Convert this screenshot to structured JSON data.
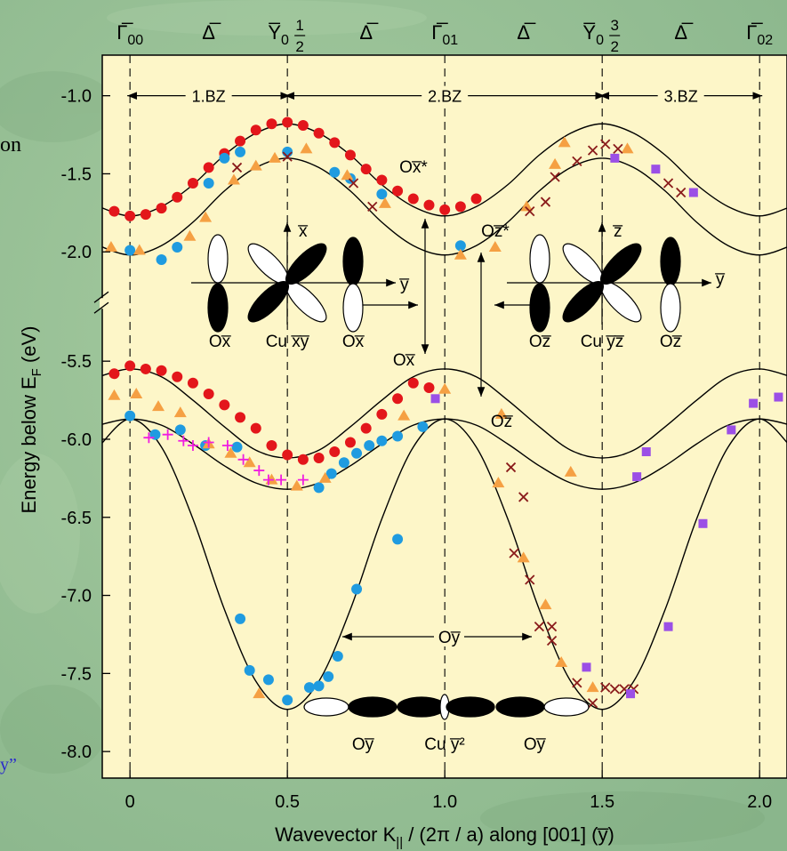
{
  "chart_data": {
    "type": "scatter",
    "xlim": [
      -0.088,
      2.087
    ],
    "ylim": [
      -8.17,
      -0.74
    ],
    "ybreak": [
      -5.13,
      -2.33
    ],
    "xticks": [
      0,
      0.5,
      {
        "value": 1,
        "label": "1.0"
      },
      1.5,
      {
        "value": 2,
        "label": "2.0"
      }
    ],
    "yticks": [
      {
        "value": -1,
        "label": "-1.0"
      },
      -1.5,
      {
        "value": -2,
        "label": "-2.0"
      },
      -5.5,
      {
        "value": -6,
        "label": "-6.0"
      },
      -6.5,
      {
        "value": -7,
        "label": "-7.0"
      },
      -7.5,
      {
        "value": -8,
        "label": "-8.0"
      }
    ],
    "xgrid": true,
    "xaxis_title": {
      "text": "Wavevector K",
      "sub": "||",
      "after": " / (2π / a) along [001] (y̅)"
    },
    "yaxis_title": {
      "text": "Energy below E",
      "sub": "F",
      "after": " (eV)"
    },
    "top_labels": [
      {
        "text": "Γ̅",
        "sub": "00"
      },
      {
        "text": "Δ̅"
      },
      {
        "text": "Y̅",
        "sub": "0",
        "frac": [
          "1",
          "2"
        ]
      },
      {
        "text": "Δ̅"
      },
      {
        "text": "Γ̅",
        "sub": "01"
      },
      {
        "text": "Δ̅"
      },
      {
        "text": "Y̅",
        "sub": "0",
        "frac": [
          "3",
          "2"
        ]
      },
      {
        "text": "Δ̅"
      },
      {
        "text": "Γ̅",
        "sub": "02"
      }
    ],
    "zones": [
      "1.BZ",
      "2.BZ",
      "3.BZ"
    ],
    "curve_color": "#000000",
    "curve_x": [
      -0.1,
      0,
      0.1,
      0.2,
      0.3,
      0.4,
      0.5,
      0.6,
      0.7,
      0.8,
      0.9,
      1.0,
      1.1,
      1.2,
      1.3,
      1.4,
      1.5,
      1.6,
      1.7,
      1.8,
      1.9,
      2.0,
      2.1
    ],
    "curves": [
      {
        "values": [
          -1.71,
          -1.77,
          -1.71,
          -1.57,
          -1.38,
          -1.24,
          -1.18,
          -1.24,
          -1.38,
          -1.57,
          -1.71,
          -1.77,
          -1.71,
          -1.57,
          -1.38,
          -1.24,
          -1.18,
          -1.24,
          -1.38,
          -1.57,
          -1.71,
          -1.77,
          -1.71
        ]
      },
      {
        "values": [
          -1.96,
          -2.02,
          -1.96,
          -1.81,
          -1.61,
          -1.46,
          -1.4,
          -1.46,
          -1.61,
          -1.81,
          -1.96,
          -2.02,
          -1.96,
          -1.81,
          -1.61,
          -1.46,
          -1.4,
          -1.46,
          -1.61,
          -1.81,
          -1.96,
          -2.02,
          -1.96
        ]
      },
      {
        "values": [
          -5.6,
          -5.55,
          -5.6,
          -5.75,
          -5.92,
          -6.07,
          -6.12,
          -6.07,
          -5.92,
          -5.75,
          -5.6,
          -5.55,
          -5.6,
          -5.75,
          -5.92,
          -6.07,
          -6.12,
          -6.07,
          -5.92,
          -5.75,
          -5.6,
          -5.55,
          -5.6
        ]
      },
      {
        "values": [
          -5.91,
          -5.87,
          -5.91,
          -6.03,
          -6.17,
          -6.28,
          -6.32,
          -6.28,
          -6.17,
          -6.03,
          -5.91,
          -5.87,
          -5.91,
          -6.03,
          -6.17,
          -6.28,
          -6.32,
          -6.28,
          -6.17,
          -6.03,
          -5.91,
          -5.87,
          -5.91
        ]
      },
      {
        "values": [
          -6.05,
          -5.87,
          -6.05,
          -6.51,
          -7.09,
          -7.55,
          -7.73,
          -7.55,
          -7.09,
          -6.51,
          -6.05,
          -5.87,
          -6.05,
          -6.51,
          -7.09,
          -7.55,
          -7.73,
          -7.55,
          -7.09,
          -6.51,
          -6.05,
          -5.87,
          -6.05
        ]
      }
    ],
    "series": [
      {
        "marker": "circle",
        "color": "#e3161b",
        "x": [
          -0.05,
          0,
          0.05,
          0.1,
          0.15,
          0.2,
          0.25,
          0.3,
          0.35,
          0.4,
          0.45,
          0.5,
          0.55,
          0.6,
          0.65,
          0.7,
          0.75,
          0.8,
          0.85,
          0.9,
          0.95,
          1.0,
          1.05,
          1.1,
          -0.05,
          0,
          0.05,
          0.1,
          0.15,
          0.2,
          0.25,
          0.3,
          0.35,
          0.4,
          0.45,
          0.5,
          0.55,
          0.6,
          0.65,
          0.7,
          0.75,
          0.8,
          0.85,
          0.9,
          0.95
        ],
        "values": [
          -1.74,
          -1.77,
          -1.76,
          -1.72,
          -1.65,
          -1.56,
          -1.46,
          -1.37,
          -1.29,
          -1.22,
          -1.18,
          -1.17,
          -1.19,
          -1.24,
          -1.3,
          -1.38,
          -1.47,
          -1.54,
          -1.61,
          -1.66,
          -1.7,
          -1.73,
          -1.71,
          -1.66,
          -5.58,
          -5.53,
          -5.55,
          -5.56,
          -5.6,
          -5.64,
          -5.71,
          -5.78,
          -5.86,
          -5.93,
          -6.04,
          -6.1,
          -6.13,
          -6.12,
          -6.08,
          -6.02,
          -5.93,
          -5.84,
          -5.74,
          -5.64,
          -5.67
        ]
      },
      {
        "marker": "circle",
        "color": "#1f9be0",
        "x": [
          0,
          0.1,
          0.15,
          0.25,
          0.3,
          0.35,
          0.5,
          0.65,
          0.7,
          0.8,
          1.05,
          0,
          0.08,
          0.16,
          0.24,
          0.34,
          0.6,
          0.64,
          0.68,
          0.72,
          0.76,
          0.8,
          0.85,
          0.93,
          0.35,
          0.38,
          0.44,
          0.5,
          0.57,
          0.6,
          0.63,
          0.66,
          0.72,
          0.85
        ],
        "values": [
          -1.99,
          -2.05,
          -1.97,
          -1.56,
          -1.4,
          -1.36,
          -1.36,
          -1.49,
          -1.53,
          -1.63,
          -1.96,
          -5.85,
          -5.97,
          -5.94,
          -6.04,
          -6.05,
          -6.31,
          -6.22,
          -6.15,
          -6.09,
          -6.04,
          -6.01,
          -5.98,
          -5.92,
          -7.15,
          -7.48,
          -7.54,
          -7.67,
          -7.59,
          -7.58,
          -7.52,
          -7.39,
          -6.96,
          -6.64
        ]
      },
      {
        "marker": "triangle",
        "color": "#f5a043",
        "x": [
          -0.06,
          0.03,
          0.19,
          0.24,
          0.33,
          0.4,
          0.46,
          0.56,
          0.69,
          0.81,
          1.05,
          1.16,
          1.26,
          1.35,
          1.38,
          1.58,
          -0.05,
          0.02,
          0.09,
          0.16,
          0.25,
          0.32,
          0.38,
          0.45,
          0.53,
          0.62,
          0.87,
          1.0,
          1.18,
          1.17,
          1.4,
          1.25,
          1.32,
          1.37,
          1.47,
          0.41
        ],
        "values": [
          -1.97,
          -1.99,
          -1.9,
          -1.78,
          -1.54,
          -1.45,
          -1.4,
          -1.34,
          -1.51,
          -1.69,
          -2.02,
          -1.97,
          -1.71,
          -1.44,
          -1.3,
          -1.34,
          -5.72,
          -5.71,
          -5.79,
          -5.83,
          -6.03,
          -6.09,
          -6.15,
          -6.26,
          -6.3,
          -6.25,
          -5.85,
          -5.68,
          -5.84,
          -6.28,
          -6.21,
          -6.76,
          -7.06,
          -7.43,
          -7.59,
          -7.63
        ]
      },
      {
        "marker": "cross",
        "color": "#8a1b1b",
        "x": [
          0.34,
          0.5,
          0.71,
          0.77,
          1.27,
          1.32,
          1.35,
          1.42,
          1.47,
          1.51,
          1.55,
          1.71,
          1.75,
          1.21,
          1.25,
          1.22,
          1.27,
          1.3,
          1.34,
          1.34,
          1.42,
          1.47,
          1.51,
          1.54,
          1.57,
          1.6
        ],
        "values": [
          -1.46,
          -1.39,
          -1.56,
          -1.71,
          -1.74,
          -1.68,
          -1.52,
          -1.42,
          -1.35,
          -1.31,
          -1.34,
          -1.56,
          -1.62,
          -6.18,
          -6.37,
          -6.73,
          -6.9,
          -7.2,
          -7.2,
          -7.29,
          -7.56,
          -7.69,
          -7.59,
          -7.6,
          -7.6,
          -7.6
        ]
      },
      {
        "marker": "plus",
        "color": "#f01ee0",
        "x": [
          0.06,
          0.12,
          0.17,
          0.2,
          0.25,
          0.31,
          0.36,
          0.41,
          0.44,
          0.48,
          0.55
        ],
        "values": [
          -5.99,
          -5.97,
          -6.01,
          -6.04,
          -6.02,
          -6.04,
          -6.13,
          -6.2,
          -6.26,
          -6.26,
          -6.26
        ]
      },
      {
        "marker": "square",
        "color": "#9b4fe6",
        "x": [
          1.54,
          1.67,
          1.79,
          0.97,
          1.61,
          1.64,
          1.82,
          1.91,
          1.98,
          2.06,
          1.59,
          1.71,
          1.45
        ],
        "values": [
          -1.4,
          -1.47,
          -1.62,
          -5.74,
          -6.24,
          -6.08,
          -6.54,
          -5.94,
          -5.77,
          -5.73,
          -7.63,
          -7.2,
          -7.46
        ]
      }
    ],
    "annotations": {
      "ox_star": "Ox̅*",
      "oz_star": "Oz̅*",
      "ox": "Ox̅",
      "oz": "Oz̅",
      "oy": "Oy̅"
    },
    "orbitals": {
      "left_axes": [
        "x̅",
        "y̅"
      ],
      "left_labels": [
        "Ox̅",
        "Cu x̅y̅",
        "Ox̅"
      ],
      "right_axes": [
        "z̅",
        "y̅"
      ],
      "right_labels": [
        "Oz̅",
        "Cu y̅z̅",
        "Oz̅"
      ],
      "bottom_labels": [
        "Oy̅",
        "Cu y̅²",
        "Oy̅"
      ]
    },
    "side_text": [
      "on",
      "y”"
    ]
  }
}
